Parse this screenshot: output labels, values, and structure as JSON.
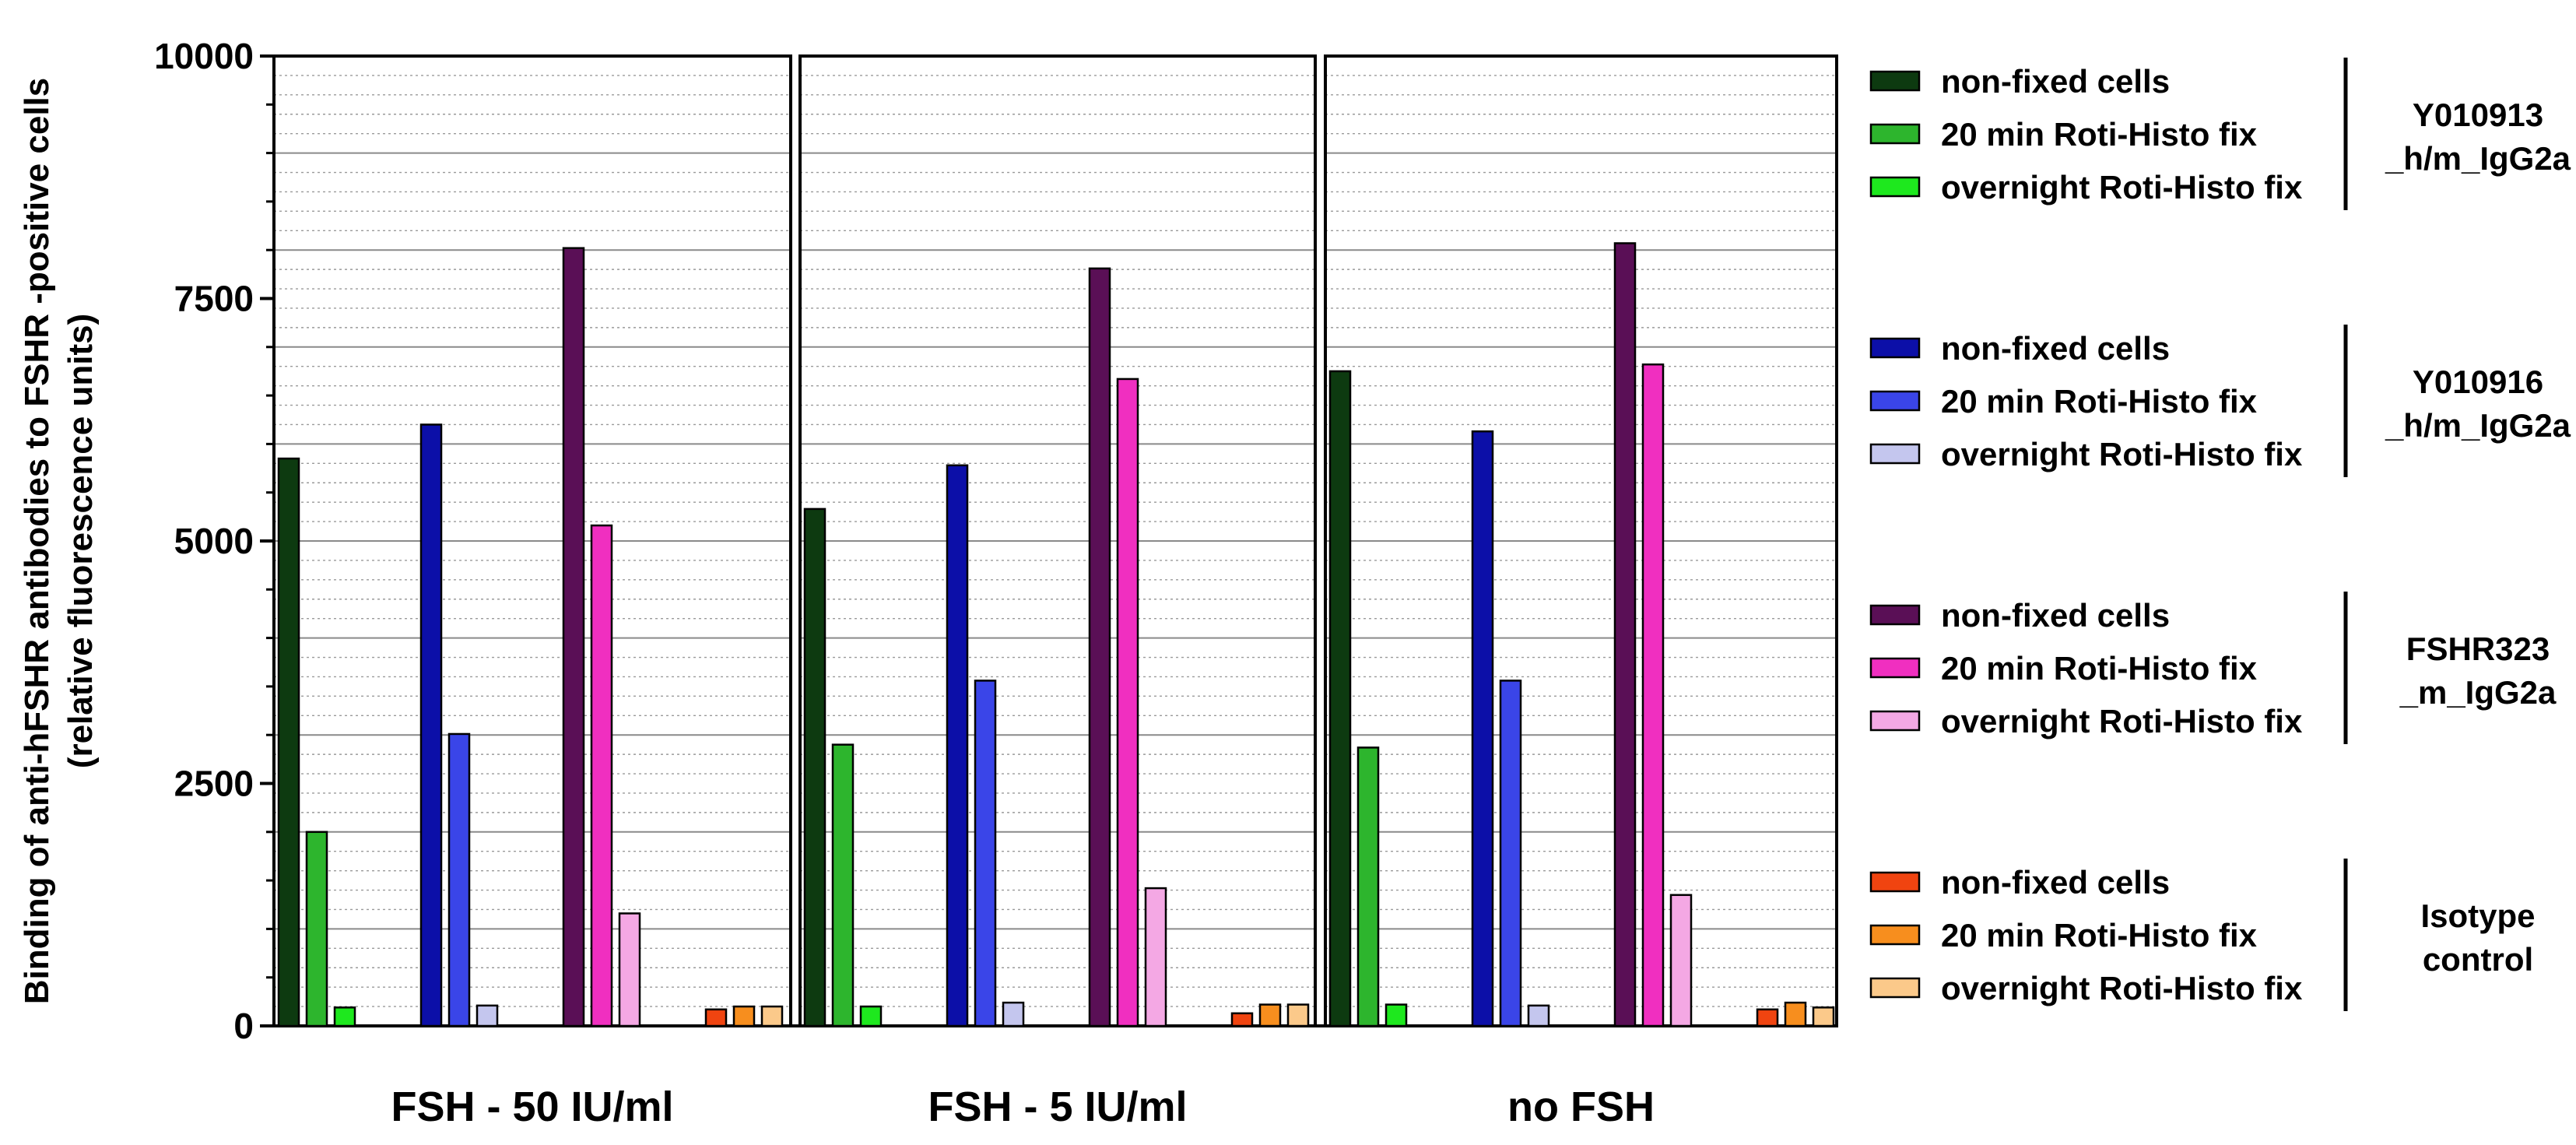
{
  "colors": {
    "Y010913": [
      "#0d3a10",
      "#2db52d",
      "#1ee81e"
    ],
    "Y010916": [
      "#0c0fa8",
      "#3a45e8",
      "#c4c6ee"
    ],
    "FSHR323": [
      "#5a0f56",
      "#f02fc0",
      "#f4a8e4"
    ],
    "Isotype": [
      "#f04410",
      "#f78e1e",
      "#fbc98a"
    ]
  },
  "chart_data": {
    "type": "bar",
    "ylabel": "Binding of anti-hFSHR antibodies to FSHR -positive cells",
    "ylabel2": "(relative fluorescence units)",
    "ylim": [
      0,
      10000
    ],
    "yticks": [
      0,
      2500,
      5000,
      7500,
      10000
    ],
    "grid": true,
    "legend_placement": "right",
    "categories": [
      "FSH - 50 IU/ml",
      "FSH - 5 IU/ml",
      "no FSH"
    ],
    "groups": [
      {
        "antibody": [
          "Y010913",
          "_h/m_IgG2a"
        ],
        "color_key": "Y010913",
        "series": [
          {
            "name": "non-fixed cells",
            "values": [
              5850,
              5330,
              6750
            ]
          },
          {
            "name": "20 min Roti-Histo fix",
            "values": [
              2000,
              2900,
              2870
            ]
          },
          {
            "name": "overnight Roti-Histo fix",
            "values": [
              190,
              200,
              220
            ]
          }
        ]
      },
      {
        "antibody": [
          "Y010916",
          "_h/m_IgG2a"
        ],
        "color_key": "Y010916",
        "series": [
          {
            "name": "non-fixed cells",
            "values": [
              6200,
              5780,
              6130
            ]
          },
          {
            "name": "20 min Roti-Histo fix",
            "values": [
              3010,
              3560,
              3560
            ]
          },
          {
            "name": "overnight Roti-Histo fix",
            "values": [
              210,
              240,
              210
            ]
          }
        ]
      },
      {
        "antibody": [
          "FSHR323",
          "_m_IgG2a"
        ],
        "color_key": "FSHR323",
        "series": [
          {
            "name": "non-fixed cells",
            "values": [
              8020,
              7810,
              8070
            ]
          },
          {
            "name": "20 min Roti-Histo fix",
            "values": [
              5160,
              6670,
              6820
            ]
          },
          {
            "name": "overnight Roti-Histo fix",
            "values": [
              1160,
              1420,
              1350
            ]
          }
        ]
      },
      {
        "antibody": [
          "Isotype",
          "control"
        ],
        "color_key": "Isotype",
        "series": [
          {
            "name": "non-fixed cells",
            "values": [
              170,
              130,
              170
            ]
          },
          {
            "name": "20 min Roti-Histo fix",
            "values": [
              200,
              220,
              240
            ]
          },
          {
            "name": "overnight Roti-Histo fix",
            "values": [
              200,
              220,
              190
            ]
          }
        ]
      }
    ]
  }
}
